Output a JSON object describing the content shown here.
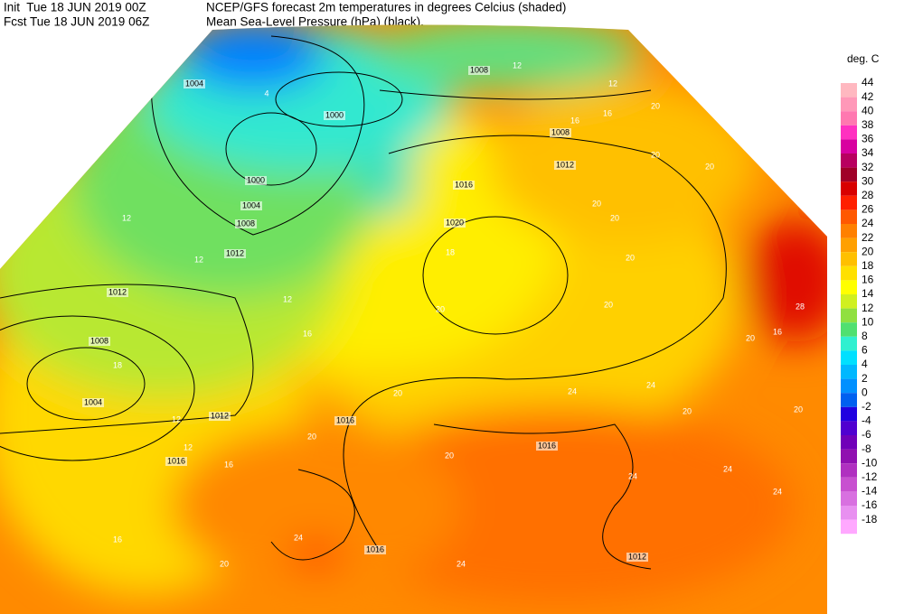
{
  "header": {
    "init": "Init  Tue 18 JUN 2019 00Z",
    "title": "NCEP/GFS forecast 2m temperatures in degrees Celcius (shaded)",
    "fcst": "Fcst Tue 18 JUN 2019 06Z",
    "subtitle": "Mean Sea-Level Pressure (hPa) (black)."
  },
  "legend": {
    "title": "deg. C",
    "entries": [
      {
        "label": 44,
        "color": "#ffb8c0"
      },
      {
        "label": 42,
        "color": "#ff98b8"
      },
      {
        "label": 40,
        "color": "#ff78b0"
      },
      {
        "label": 38,
        "color": "#ff30c0"
      },
      {
        "label": 36,
        "color": "#d800a0"
      },
      {
        "label": 34,
        "color": "#b80060"
      },
      {
        "label": 32,
        "color": "#a00028"
      },
      {
        "label": 30,
        "color": "#d80000"
      },
      {
        "label": 28,
        "color": "#ff2000"
      },
      {
        "label": 26,
        "color": "#ff5800"
      },
      {
        "label": 24,
        "color": "#ff8000"
      },
      {
        "label": 22,
        "color": "#ffa000"
      },
      {
        "label": 20,
        "color": "#ffc000"
      },
      {
        "label": 18,
        "color": "#ffe000"
      },
      {
        "label": 16,
        "color": "#ffff00"
      },
      {
        "label": 14,
        "color": "#d0f020"
      },
      {
        "label": 12,
        "color": "#90e040"
      },
      {
        "label": 10,
        "color": "#50e070"
      },
      {
        "label": 8,
        "color": "#30f0d0"
      },
      {
        "label": 6,
        "color": "#00e0ff"
      },
      {
        "label": 4,
        "color": "#00b8ff"
      },
      {
        "label": 2,
        "color": "#0090ff"
      },
      {
        "label": 0,
        "color": "#0060f0"
      },
      {
        "label": -2,
        "color": "#2000e0"
      },
      {
        "label": -4,
        "color": "#5000d0"
      },
      {
        "label": -6,
        "color": "#7000b8"
      },
      {
        "label": -8,
        "color": "#9010b0"
      },
      {
        "label": -10,
        "color": "#b030c0"
      },
      {
        "label": -12,
        "color": "#c850d0"
      },
      {
        "label": -14,
        "color": "#d870e0"
      },
      {
        "label": -16,
        "color": "#e890f0"
      },
      {
        "label": -18,
        "color": "#ffa8ff"
      }
    ]
  },
  "isobar_labels": [
    1004,
    1000,
    1000,
    1004,
    1008,
    1012,
    1012,
    1008,
    1004,
    1012,
    1016,
    1016,
    1016,
    1016,
    1012,
    1008,
    1008,
    1012,
    1016,
    1020
  ],
  "temperature_labels": [
    4,
    12,
    12,
    12,
    16,
    18,
    20,
    12,
    12,
    16,
    20,
    20,
    24,
    24,
    20,
    24,
    20,
    24,
    16,
    20,
    20,
    20,
    20,
    20,
    20,
    16,
    20,
    12,
    12,
    16,
    18,
    20,
    16,
    28,
    20,
    24,
    24,
    20,
    24
  ]
}
